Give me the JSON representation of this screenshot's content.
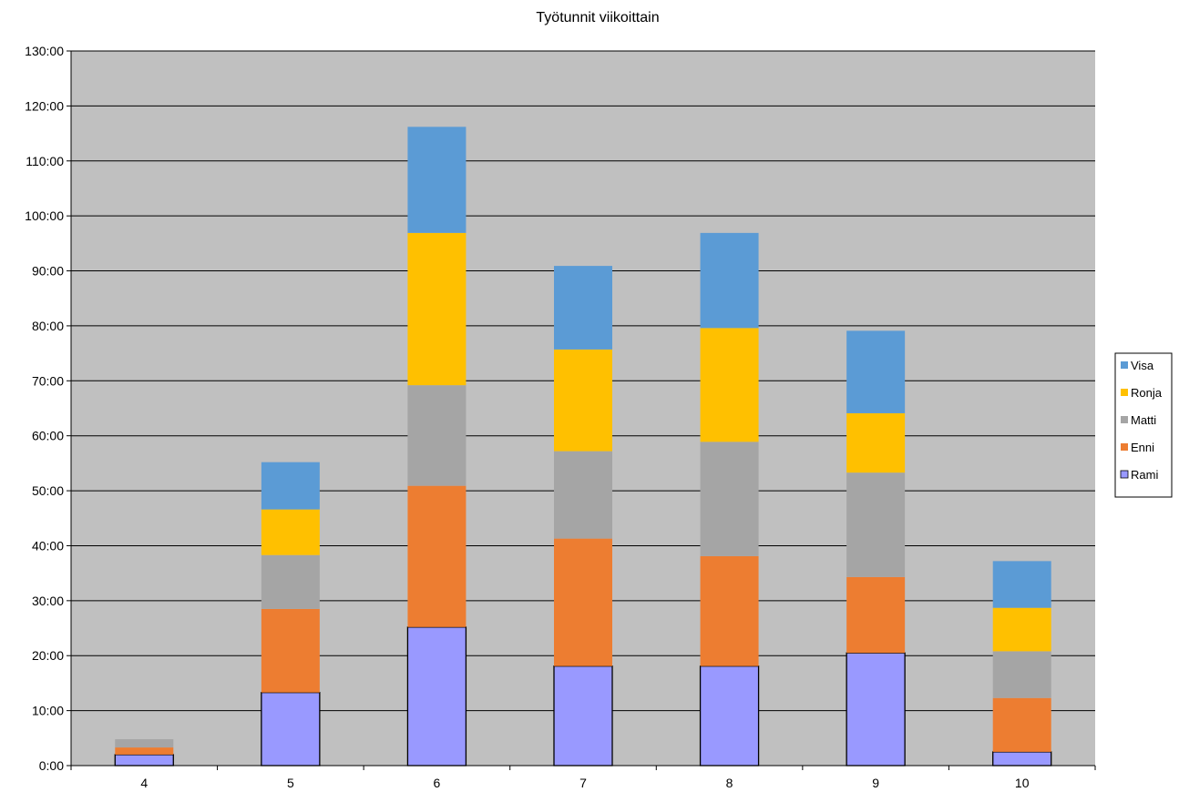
{
  "chart_data": {
    "type": "bar",
    "stacked": true,
    "title": "Työtunnit viikoittain",
    "xlabel": "",
    "ylabel": "",
    "categories": [
      "4",
      "5",
      "6",
      "7",
      "8",
      "9",
      "10"
    ],
    "ylim": [
      0,
      130
    ],
    "y_ticks": [
      0,
      10,
      20,
      30,
      40,
      50,
      60,
      70,
      80,
      90,
      100,
      110,
      120,
      130
    ],
    "y_tick_labels": [
      "0:00",
      "10:00",
      "20:00",
      "30:00",
      "40:00",
      "50:00",
      "60:00",
      "70:00",
      "80:00",
      "90:00",
      "100:00",
      "110:00",
      "120:00",
      "130:00"
    ],
    "grid": true,
    "legend_position": "right",
    "series": [
      {
        "name": "Rami",
        "color": "#9999ff",
        "values": [
          2.0,
          13.3,
          25.2,
          18.1,
          18.1,
          20.5,
          2.5
        ]
      },
      {
        "name": "Enni",
        "color": "#ed7d31",
        "values": [
          1.3,
          15.2,
          25.7,
          23.2,
          20.0,
          13.8,
          9.8
        ]
      },
      {
        "name": "Matti",
        "color": "#a5a5a5",
        "values": [
          1.5,
          9.8,
          18.3,
          15.9,
          20.8,
          19.0,
          8.5
        ]
      },
      {
        "name": "Ronja",
        "color": "#ffc000",
        "values": [
          0,
          8.3,
          27.7,
          18.5,
          20.7,
          10.8,
          7.9
        ]
      },
      {
        "name": "Visa",
        "color": "#5b9bd5",
        "values": [
          0,
          8.6,
          19.3,
          15.2,
          17.3,
          15.0,
          8.5
        ]
      }
    ],
    "colors": {
      "plot_background": "#c0c0c0",
      "gridline": "#000000"
    }
  }
}
